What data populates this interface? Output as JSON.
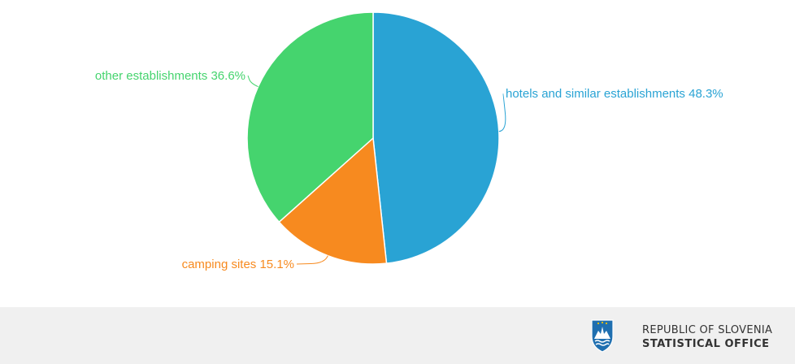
{
  "chart_data": {
    "type": "pie",
    "title": "",
    "slices": [
      {
        "label": "hotels and similar establishments",
        "value": 48.3,
        "display": "hotels and similar establishments 48.3%",
        "color": "#29a3d4"
      },
      {
        "label": "camping sites",
        "value": 15.1,
        "display": "camping sites 15.1%",
        "color": "#f78a1f"
      },
      {
        "label": "other establishments",
        "value": 36.6,
        "display": "other establishments 36.6%",
        "color": "#45d46e"
      }
    ]
  },
  "footer": {
    "org_line1": "REPUBLIC OF SLOVENIA",
    "org_line2": "STATISTICAL OFFICE",
    "crest_icon": "slovenia-crest-icon",
    "crest_color": "#1f6fb0"
  }
}
